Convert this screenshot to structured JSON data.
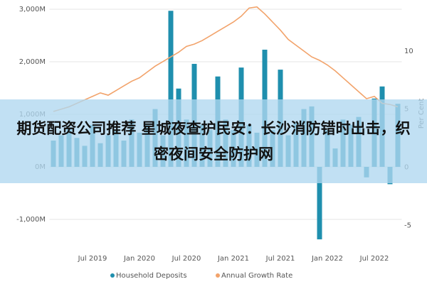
{
  "chart_data": {
    "type": "bar-line",
    "categories": [
      null,
      null,
      null,
      null,
      null,
      "Jul 2019",
      null,
      null,
      null,
      null,
      null,
      "Jan 2020",
      null,
      null,
      null,
      null,
      null,
      "Jul 2020",
      null,
      null,
      null,
      null,
      null,
      "Jan 2021",
      null,
      null,
      null,
      null,
      null,
      "Jul 2021",
      null,
      null,
      null,
      null,
      null,
      "Jan 2022",
      null,
      null,
      null,
      null,
      null,
      "Jul 2022",
      null,
      null,
      null
    ],
    "series": [
      {
        "name": "Household Deposits",
        "color": "#1f8fae",
        "type": "bar",
        "values": [
          500,
          600,
          750,
          550,
          400,
          800,
          450,
          600,
          700,
          500,
          900,
          650,
          800,
          1100,
          600,
          2970,
          1490,
          900,
          1960,
          800,
          700,
          1720,
          900,
          700,
          1890,
          800,
          650,
          2230,
          700,
          1850,
          600,
          850,
          1100,
          1150,
          -1380,
          700,
          350,
          900,
          800,
          950,
          -200,
          1300,
          1530,
          -330,
          1200
        ]
      },
      {
        "name": "Annual Growth Rate",
        "color": "#f2a36b",
        "type": "line",
        "axis": "y2",
        "values": [
          4.8,
          5.0,
          5.2,
          5.5,
          5.8,
          6.1,
          6.4,
          6.2,
          6.6,
          7.0,
          7.4,
          7.7,
          8.2,
          8.7,
          9.1,
          9.5,
          9.9,
          10.4,
          10.6,
          10.9,
          11.3,
          11.7,
          12.1,
          12.5,
          13.0,
          13.7,
          13.8,
          13.2,
          12.5,
          11.8,
          11.0,
          10.5,
          10.0,
          9.5,
          9.2,
          8.8,
          8.3,
          7.7,
          7.1,
          6.5,
          5.9,
          6.1,
          5.5,
          5.4,
          5.2
        ]
      }
    ],
    "ylim": [
      -1400,
      3000
    ],
    "yticks": [
      {
        "value": -1000,
        "label": "-1,000M"
      },
      {
        "value": 0,
        "label": "0M"
      },
      {
        "value": 1000,
        "label": "1,000M"
      },
      {
        "value": 2000,
        "label": "2,000M"
      },
      {
        "value": 3000,
        "label": "3,000M"
      }
    ],
    "y2lim": [
      -6.3,
      13.6
    ],
    "y2ticks": [
      -5,
      0,
      5,
      10
    ],
    "y2label": "Per Cent",
    "grid": true,
    "legend": "bottom"
  },
  "banner": {
    "text": "期货配资公司推荐 星城夜查护民安：长沙消防错时出击，织密夜间安全防护网"
  }
}
